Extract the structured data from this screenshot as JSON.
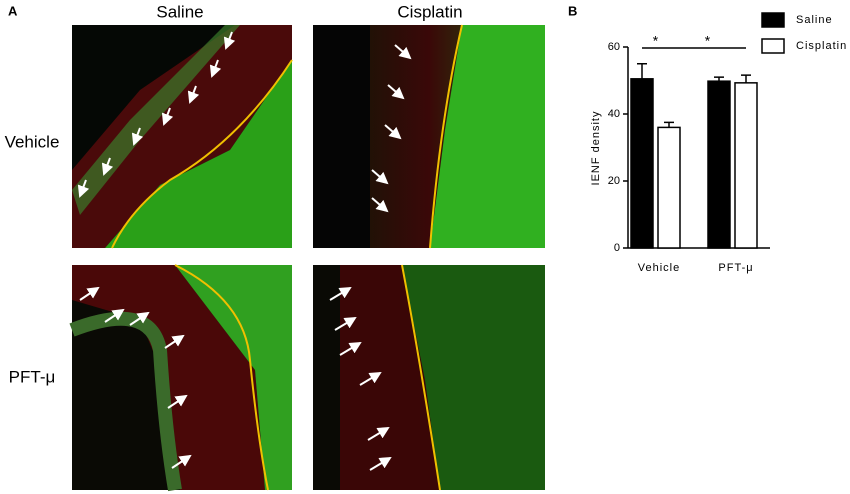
{
  "panels": {
    "a": {
      "letter": "A",
      "columns": [
        "Saline",
        "Cisplatin"
      ],
      "rows": [
        "Vehicle",
        "PFT-μ"
      ]
    }
  },
  "chart_data": {
    "type": "bar",
    "letter": "B",
    "y_label": "IENF density",
    "categories": [
      "Vehicle",
      "PFT-μ"
    ],
    "series": [
      {
        "name": "Saline",
        "color": "#000000",
        "values": [
          50.5,
          49.8
        ],
        "errors": [
          4.5,
          1.2
        ]
      },
      {
        "name": "Cisplatin",
        "color": "#ffffff",
        "values": [
          36,
          49.3
        ],
        "errors": [
          1.5,
          2.3
        ]
      }
    ],
    "ylim": [
      0,
      60
    ],
    "yticks": [
      0,
      20,
      40,
      60
    ],
    "annotations": [
      "*",
      "*"
    ],
    "legend": "top-right"
  }
}
